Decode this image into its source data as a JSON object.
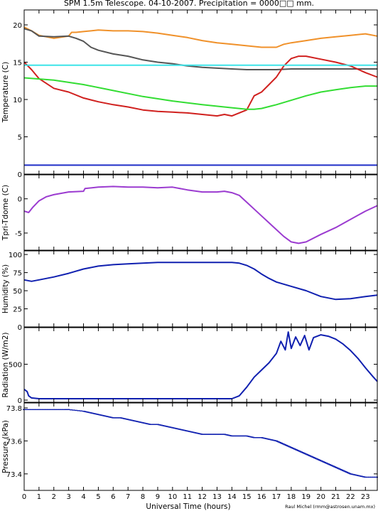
{
  "title": "SPM 1.5m Telescope. 04-10-2007. Precipitation = 0000□□ mm.",
  "xlabel": "Universal Time (hours)",
  "credit": "Raul Michel (rmm@astrosen.unam.mx)",
  "x_ticks": [
    "0",
    "1",
    "2",
    "3",
    "4",
    "5",
    "6",
    "7",
    "8",
    "9",
    "10",
    "11",
    "12",
    "13",
    "14",
    "15",
    "16",
    "17",
    "18",
    "19",
    "20",
    "21",
    "22",
    "23"
  ],
  "colors": {
    "orange": "#f0912a",
    "grey": "#555555",
    "red": "#d0201e",
    "cyan": "#3de4e8",
    "green": "#33dd33",
    "blue": "#1f2ec8",
    "purple": "#9b3bd0",
    "navy": "#1020b0"
  },
  "chart_data": [
    {
      "type": "line",
      "ylabel": "Temperature (C)",
      "ylim": [
        0,
        22
      ],
      "y_ticks": [
        "0",
        "5",
        "10",
        "15",
        "20"
      ],
      "xlim": [
        0,
        23.8
      ],
      "series": [
        {
          "color": "#f0912a",
          "x": [
            0,
            0.5,
            1,
            2,
            3,
            3.2,
            3.5,
            4,
            5,
            6,
            7,
            8,
            9,
            10,
            11,
            12,
            13,
            14,
            15,
            16,
            17,
            17.5,
            18,
            19,
            20,
            21,
            22,
            23,
            23.8
          ],
          "y": [
            19.7,
            19.2,
            18.6,
            18.2,
            18.5,
            19.0,
            19.0,
            19.1,
            19.3,
            19.2,
            19.2,
            19.1,
            18.9,
            18.6,
            18.3,
            17.9,
            17.6,
            17.4,
            17.2,
            17.0,
            17.0,
            17.4,
            17.6,
            17.9,
            18.2,
            18.4,
            18.6,
            18.8,
            18.5
          ]
        },
        {
          "color": "#555555",
          "x": [
            0,
            0.5,
            1,
            2,
            3,
            3.5,
            4,
            4.5,
            5,
            6,
            7,
            8,
            9,
            10,
            11,
            12,
            13,
            14,
            15,
            16,
            17,
            18,
            19,
            20,
            21,
            22,
            23,
            23.8
          ],
          "y": [
            19.5,
            19.2,
            18.5,
            18.4,
            18.5,
            18.2,
            17.8,
            17.0,
            16.6,
            16.1,
            15.8,
            15.3,
            15.0,
            14.8,
            14.5,
            14.3,
            14.2,
            14.1,
            14.0,
            14.0,
            14.0,
            14.1,
            14.1,
            14.1,
            14.1,
            14.1,
            14.1,
            14.1
          ]
        },
        {
          "color": "#d0201e",
          "x": [
            0,
            0.5,
            1,
            2,
            3,
            4,
            5,
            6,
            7,
            8,
            9,
            10,
            11,
            12,
            13,
            13.5,
            14,
            15,
            15.5,
            16,
            16.5,
            17,
            17.5,
            18,
            18.5,
            19,
            20,
            21,
            22,
            23,
            23.8
          ],
          "y": [
            15.0,
            14.0,
            12.8,
            11.5,
            11.0,
            10.2,
            9.7,
            9.3,
            9.0,
            8.6,
            8.4,
            8.3,
            8.2,
            8.0,
            7.8,
            8.0,
            7.8,
            8.6,
            10.5,
            11.0,
            12.0,
            13.0,
            14.5,
            15.5,
            15.8,
            15.8,
            15.4,
            15.0,
            14.5,
            13.6,
            13.0
          ]
        },
        {
          "color": "#3de4e8",
          "x": [
            0,
            23.8
          ],
          "y": [
            14.6,
            14.6
          ]
        },
        {
          "color": "#33dd33",
          "x": [
            0,
            2,
            4,
            6,
            8,
            10,
            12,
            14,
            15,
            15.5,
            16,
            17,
            18,
            19,
            20,
            21,
            22,
            23,
            23.8
          ],
          "y": [
            12.9,
            12.6,
            12.0,
            11.2,
            10.4,
            9.8,
            9.3,
            8.9,
            8.7,
            8.7,
            8.8,
            9.3,
            9.9,
            10.5,
            11.0,
            11.3,
            11.6,
            11.8,
            11.8
          ]
        },
        {
          "color": "#1f2ec8",
          "x": [
            0,
            23.8
          ],
          "y": [
            1.2,
            1.2
          ]
        }
      ]
    },
    {
      "type": "line",
      "ylabel": "Tpri-Tdome (C)",
      "ylim": [
        -7.5,
        3.5
      ],
      "y_ticks": [
        "0",
        "-5"
      ],
      "xlim": [
        0,
        23.8
      ],
      "series": [
        {
          "color": "#9b3bd0",
          "x": [
            0,
            0.3,
            0.6,
            1,
            1.5,
            2,
            3,
            4,
            4.1,
            5,
            6,
            7,
            8,
            9,
            10,
            11,
            12,
            13,
            13.5,
            14,
            14.5,
            15,
            15.5,
            16,
            16.5,
            17,
            17.5,
            18,
            18.5,
            19,
            20,
            21,
            22,
            23,
            23.8
          ],
          "y": [
            -1.8,
            -2.0,
            -1.2,
            -0.3,
            0.3,
            0.6,
            1.0,
            1.1,
            1.5,
            1.7,
            1.8,
            1.7,
            1.7,
            1.6,
            1.7,
            1.3,
            1.0,
            1.0,
            1.1,
            0.9,
            0.5,
            -0.5,
            -1.5,
            -2.5,
            -3.5,
            -4.5,
            -5.5,
            -6.3,
            -6.5,
            -6.3,
            -5.2,
            -4.2,
            -3.0,
            -1.8,
            -1.0
          ]
        }
      ]
    },
    {
      "type": "line",
      "ylabel": "Humidity (%)",
      "ylim": [
        0,
        105
      ],
      "y_ticks": [
        "0",
        "25",
        "50",
        "75",
        "100"
      ],
      "xlim": [
        0,
        23.8
      ],
      "series": [
        {
          "color": "#1020b0",
          "x": [
            0,
            0.5,
            1,
            2,
            3,
            4,
            5,
            6,
            7,
            8,
            9,
            10,
            11,
            12,
            13,
            14,
            14.5,
            15,
            15.5,
            16,
            16.5,
            17,
            18,
            19,
            20,
            21,
            22,
            23,
            23.8
          ],
          "y": [
            65,
            63,
            65,
            69,
            74,
            80,
            84,
            86,
            87,
            88,
            89,
            89,
            89,
            89,
            89,
            89,
            88,
            85,
            80,
            73,
            67,
            62,
            56,
            50,
            42,
            38,
            39,
            42,
            44
          ]
        }
      ]
    },
    {
      "type": "line",
      "ylabel": "Radiation (W/m2)",
      "ylim": [
        -30,
        1010
      ],
      "y_ticks": [
        "0",
        "500"
      ],
      "xlim": [
        0,
        23.8
      ],
      "series": [
        {
          "color": "#1020b0",
          "x": [
            0,
            0.2,
            0.3,
            0.5,
            1,
            5,
            10,
            13,
            14,
            14.5,
            15,
            15.5,
            16,
            16.5,
            17,
            17.3,
            17.6,
            17.8,
            18,
            18.3,
            18.6,
            18.9,
            19.2,
            19.5,
            20,
            20.5,
            21,
            21.5,
            22,
            22.5,
            23,
            23.5,
            23.8
          ],
          "y": [
            150,
            120,
            60,
            30,
            20,
            20,
            20,
            20,
            20,
            60,
            180,
            320,
            420,
            520,
            650,
            820,
            700,
            950,
            720,
            880,
            760,
            900,
            700,
            870,
            910,
            890,
            850,
            780,
            690,
            580,
            450,
            330,
            260
          ]
        }
      ]
    },
    {
      "type": "scatter",
      "ylabel": "Pressure (kPa)",
      "ylim": [
        73.3,
        73.83
      ],
      "y_ticks": [
        "73.8",
        "73.6",
        "73.4"
      ],
      "xlim": [
        0,
        23.8
      ],
      "series": [
        {
          "color": "#1020b0",
          "x": [
            0,
            1,
            2,
            2.8,
            3,
            4,
            4.5,
            5,
            5.5,
            6,
            6.5,
            7,
            7.5,
            8,
            8.5,
            9,
            9.5,
            10,
            10.5,
            11,
            11.5,
            12,
            12.5,
            13,
            13.5,
            14,
            14.5,
            15,
            15.5,
            16,
            16.5,
            17,
            17.5,
            18,
            18.5,
            19,
            19.5,
            20,
            20.5,
            21,
            21.5,
            22,
            22.5,
            23,
            23.8
          ],
          "y": [
            73.79,
            73.79,
            73.79,
            73.79,
            73.79,
            73.78,
            73.77,
            73.76,
            73.75,
            73.74,
            73.74,
            73.73,
            73.72,
            73.71,
            73.7,
            73.7,
            73.69,
            73.68,
            73.67,
            73.66,
            73.65,
            73.64,
            73.64,
            73.64,
            73.64,
            73.63,
            73.63,
            73.63,
            73.62,
            73.62,
            73.61,
            73.6,
            73.58,
            73.56,
            73.54,
            73.52,
            73.5,
            73.48,
            73.46,
            73.44,
            73.42,
            73.4,
            73.39,
            73.38,
            73.38
          ]
        }
      ]
    }
  ]
}
